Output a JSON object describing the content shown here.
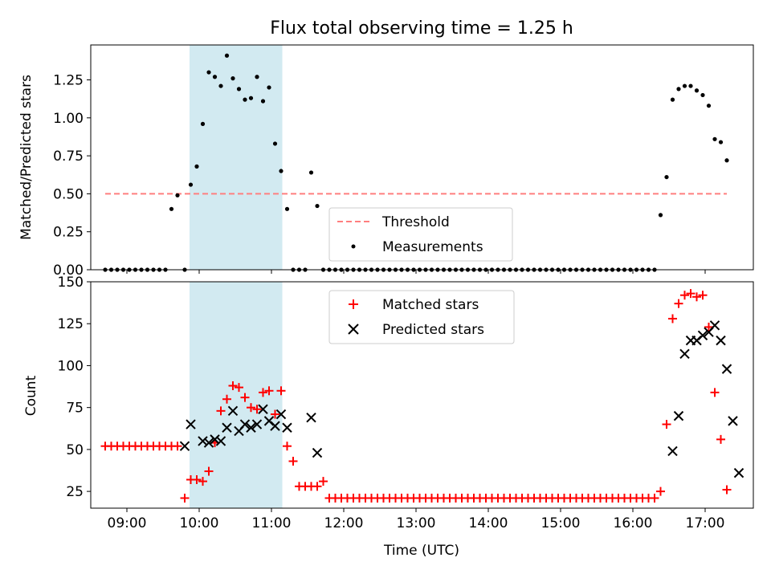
{
  "title": "Flux total observing time = 1.25 h",
  "xlabel": "Time (UTC)",
  "x_ticks": [
    "09:00",
    "10:00",
    "11:00",
    "12:00",
    "13:00",
    "14:00",
    "15:00",
    "16:00",
    "17:00"
  ],
  "x_range": [
    "08:30",
    "17:40"
  ],
  "highlight_interval": [
    "09:52",
    "11:09"
  ],
  "colors": {
    "highlight": "#add8e6",
    "threshold": "#ff7f7f",
    "matched": "#ff0000",
    "predicted": "#000000"
  },
  "chart_data": [
    {
      "type": "scatter",
      "ylabel": "Matched/Predicted stars",
      "ylim": [
        0,
        1.48
      ],
      "yticks": [
        "0.00",
        "0.25",
        "0.50",
        "0.75",
        "1.00",
        "1.25"
      ],
      "legend": {
        "placement": "lower-center",
        "entries": [
          "Threshold",
          "Measurements"
        ]
      },
      "threshold": {
        "name": "Threshold",
        "value": 0.5,
        "x_start": "08:42",
        "x_end": "17:18"
      },
      "series": [
        {
          "name": "Measurements",
          "x": [
            "08:42",
            "08:47",
            "08:52",
            "08:57",
            "09:02",
            "09:07",
            "09:12",
            "09:17",
            "09:22",
            "09:27",
            "09:32",
            "09:37",
            "09:42",
            "09:48",
            "09:53",
            "09:58",
            "10:03",
            "10:08",
            "10:13",
            "10:18",
            "10:23",
            "10:28",
            "10:33",
            "10:38",
            "10:43",
            "10:48",
            "10:53",
            "10:58",
            "11:03",
            "11:08",
            "11:13",
            "11:18",
            "11:23",
            "11:28",
            "11:33",
            "11:38",
            "11:43",
            "11:48",
            "11:53",
            "11:58",
            "12:03",
            "12:08",
            "12:13",
            "12:18",
            "12:23",
            "12:28",
            "12:33",
            "12:38",
            "12:43",
            "12:48",
            "12:53",
            "12:58",
            "13:03",
            "13:08",
            "13:13",
            "13:18",
            "13:23",
            "13:28",
            "13:33",
            "13:38",
            "13:43",
            "13:48",
            "13:53",
            "13:58",
            "14:03",
            "14:08",
            "14:13",
            "14:18",
            "14:23",
            "14:28",
            "14:33",
            "14:38",
            "14:43",
            "14:48",
            "14:53",
            "14:58",
            "15:03",
            "15:08",
            "15:13",
            "15:18",
            "15:23",
            "15:28",
            "15:33",
            "15:38",
            "15:43",
            "15:48",
            "15:53",
            "15:58",
            "16:03",
            "16:08",
            "16:13",
            "16:18",
            "16:23",
            "16:28",
            "16:33",
            "16:38",
            "16:43",
            "16:48",
            "16:53",
            "16:58",
            "17:03",
            "17:08",
            "17:13",
            "17:18"
          ],
          "values": [
            0,
            0,
            0,
            0,
            0,
            0,
            0,
            0,
            0,
            0,
            0,
            0.4,
            0.49,
            0,
            0.56,
            0.68,
            0.96,
            1.3,
            1.27,
            1.21,
            1.41,
            1.26,
            1.19,
            1.12,
            1.13,
            1.27,
            1.11,
            1.2,
            0.83,
            0.65,
            0.4,
            0,
            0,
            0,
            0.64,
            0.42,
            0,
            0,
            0,
            0,
            0,
            0,
            0,
            0,
            0,
            0,
            0,
            0,
            0,
            0,
            0,
            0,
            0,
            0,
            0,
            0,
            0,
            0,
            0,
            0,
            0,
            0,
            0,
            0,
            0,
            0,
            0,
            0,
            0,
            0,
            0,
            0,
            0,
            0,
            0,
            0,
            0,
            0,
            0,
            0,
            0,
            0,
            0,
            0,
            0,
            0,
            0,
            0,
            0,
            0,
            0,
            0,
            0.36,
            0.61,
            1.12,
            1.19,
            1.21,
            1.21,
            1.18,
            1.15,
            1.08,
            0.86,
            0.84,
            0.72
          ]
        }
      ]
    },
    {
      "type": "scatter",
      "ylabel": "Count",
      "ylim": [
        15,
        150
      ],
      "yticks": [
        "25",
        "50",
        "75",
        "100",
        "125",
        "150"
      ],
      "legend": {
        "placement": "upper-center",
        "entries": [
          "Matched stars",
          "Predicted stars"
        ]
      },
      "series": [
        {
          "name": "Matched stars",
          "marker": "+",
          "x": [
            "08:42",
            "08:47",
            "08:52",
            "08:57",
            "09:02",
            "09:07",
            "09:12",
            "09:17",
            "09:22",
            "09:27",
            "09:32",
            "09:37",
            "09:42",
            "09:48",
            "09:53",
            "09:58",
            "10:03",
            "10:08",
            "10:13",
            "10:18",
            "10:23",
            "10:28",
            "10:33",
            "10:38",
            "10:43",
            "10:48",
            "10:53",
            "10:58",
            "11:03",
            "11:08",
            "11:13",
            "11:18",
            "11:23",
            "11:28",
            "11:33",
            "11:38",
            "11:43",
            "11:48",
            "11:53",
            "11:58",
            "12:03",
            "12:08",
            "12:13",
            "12:18",
            "12:23",
            "12:28",
            "12:33",
            "12:38",
            "12:43",
            "12:48",
            "12:53",
            "12:58",
            "13:03",
            "13:08",
            "13:13",
            "13:18",
            "13:23",
            "13:28",
            "13:33",
            "13:38",
            "13:43",
            "13:48",
            "13:53",
            "13:58",
            "14:03",
            "14:08",
            "14:13",
            "14:18",
            "14:23",
            "14:28",
            "14:33",
            "14:38",
            "14:43",
            "14:48",
            "14:53",
            "14:58",
            "15:03",
            "15:08",
            "15:13",
            "15:18",
            "15:23",
            "15:28",
            "15:33",
            "15:38",
            "15:43",
            "15:48",
            "15:53",
            "15:58",
            "16:03",
            "16:08",
            "16:13",
            "16:18",
            "16:23",
            "16:28",
            "16:33",
            "16:38",
            "16:43",
            "16:48",
            "16:53",
            "16:58",
            "17:03",
            "17:08",
            "17:13",
            "17:18"
          ],
          "values": [
            52,
            52,
            52,
            52,
            52,
            52,
            52,
            52,
            52,
            52,
            52,
            52,
            52,
            21,
            32,
            32,
            31,
            37,
            54,
            73,
            80,
            88,
            87,
            81,
            75,
            74,
            84,
            85,
            71,
            85,
            52,
            43,
            28,
            28,
            28,
            28,
            31,
            21,
            21,
            21,
            21,
            21,
            21,
            21,
            21,
            21,
            21,
            21,
            21,
            21,
            21,
            21,
            21,
            21,
            21,
            21,
            21,
            21,
            21,
            21,
            21,
            21,
            21,
            21,
            21,
            21,
            21,
            21,
            21,
            21,
            21,
            21,
            21,
            21,
            21,
            21,
            21,
            21,
            21,
            21,
            21,
            21,
            21,
            21,
            21,
            21,
            21,
            21,
            21,
            21,
            21,
            21,
            25,
            65,
            128,
            137,
            142,
            143,
            141,
            142,
            123,
            84,
            56,
            26
          ]
        },
        {
          "name": "Predicted stars",
          "marker": "x",
          "x": [
            "09:48",
            "09:53",
            "10:03",
            "10:08",
            "10:13",
            "10:18",
            "10:23",
            "10:28",
            "10:33",
            "10:38",
            "10:43",
            "10:48",
            "10:53",
            "10:58",
            "11:03",
            "11:08",
            "11:13",
            "11:33",
            "11:38",
            "16:33",
            "16:38",
            "16:43",
            "16:48",
            "16:53",
            "16:58",
            "17:03",
            "17:08",
            "17:13",
            "17:18",
            "17:23",
            "17:28"
          ],
          "values": [
            52,
            65,
            55,
            54,
            56,
            55,
            63,
            73,
            61,
            65,
            63,
            65,
            74,
            67,
            64,
            71,
            63,
            69,
            48,
            49,
            70,
            107,
            115,
            115,
            118,
            120,
            124,
            115,
            98,
            67,
            36
          ]
        }
      ]
    }
  ]
}
